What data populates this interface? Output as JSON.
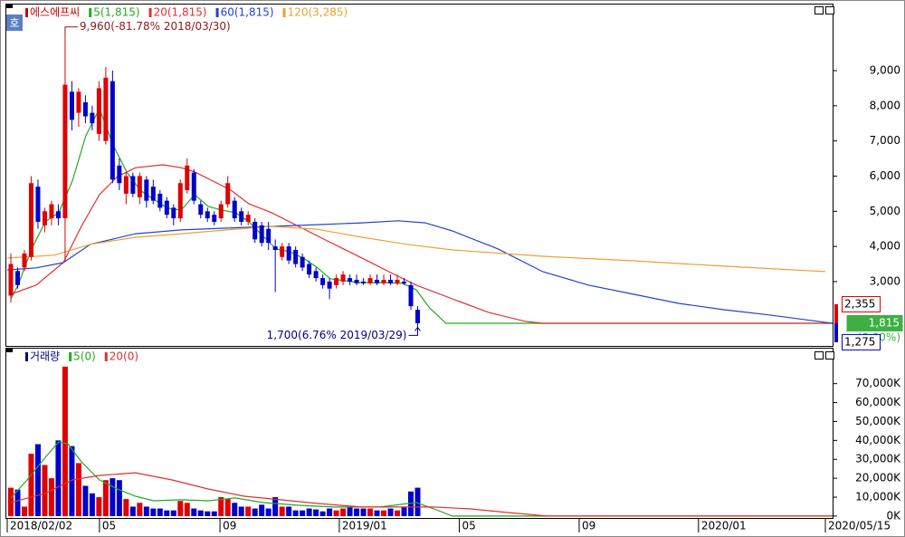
{
  "chart_data": [
    {
      "type": "candlestick",
      "badge": "호",
      "candles": {
        "name": "에스에프씨",
        "color": "#cc0000",
        "color_up": "#e00000",
        "color_down": "#0000cc",
        "x": [
          0.12,
          0.345,
          0.57,
          0.795,
          1.02,
          1.245,
          1.47,
          1.695,
          1.92,
          2.145,
          2.37,
          2.595,
          2.82,
          3.045,
          3.27,
          3.495,
          3.72,
          3.945,
          4.17,
          4.395,
          4.62,
          4.845,
          5.07,
          5.295,
          5.52,
          5.745,
          5.97,
          6.195,
          6.42,
          6.645,
          6.87,
          7.095,
          7.32,
          7.545,
          7.77,
          7.995,
          8.22,
          8.445,
          8.67,
          8.895,
          9.12,
          9.345,
          9.57,
          9.795,
          10.02,
          10.245,
          10.47,
          10.695,
          10.92,
          11.145,
          11.37,
          11.595,
          11.82,
          12.045,
          12.27,
          12.495,
          12.72,
          12.945,
          13.17,
          13.395,
          13.62
        ],
        "open": [
          2600,
          3300,
          3400,
          3700,
          5700,
          4600,
          4800,
          5000,
          4800,
          8400,
          7800,
          8100,
          7800,
          7200,
          7000,
          8700,
          6300,
          5500,
          6000,
          5400,
          5900,
          5700,
          5500,
          5300,
          5100,
          4800,
          5600,
          6100,
          5200,
          5000,
          4900,
          4800,
          5200,
          5300,
          5000,
          4700,
          4700,
          4600,
          4500,
          4000,
          3700,
          4000,
          3900,
          3700,
          3500,
          3300,
          3100,
          3000,
          2900,
          3000,
          3100,
          3050,
          3000,
          2950,
          3050,
          2950,
          3050,
          2950,
          3000,
          2900,
          2200
        ],
        "high": [
          3800,
          3400,
          3900,
          6000,
          5900,
          5100,
          5300,
          5200,
          9960,
          8700,
          8500,
          8300,
          8000,
          8700,
          9100,
          9000,
          6500,
          6100,
          6100,
          6100,
          6000,
          5900,
          5600,
          5400,
          5200,
          5900,
          6500,
          6200,
          5300,
          5100,
          5000,
          5300,
          6000,
          5400,
          5100,
          5000,
          4800,
          4700,
          4700,
          4200,
          4100,
          4100,
          4000,
          3800,
          3600,
          3400,
          3200,
          3100,
          3200,
          3300,
          3200,
          3200,
          3100,
          3200,
          3200,
          3200,
          3200,
          3200,
          3100,
          3000,
          2300
        ],
        "low": [
          2400,
          2800,
          3300,
          3600,
          4500,
          4400,
          4600,
          4600,
          3600,
          7300,
          7400,
          7500,
          7300,
          7000,
          6900,
          5800,
          5600,
          5200,
          5400,
          5200,
          5100,
          5200,
          5000,
          4800,
          4600,
          4700,
          5500,
          5200,
          4800,
          4700,
          4600,
          4700,
          5100,
          4700,
          4600,
          4600,
          4100,
          4000,
          3900,
          2700,
          3600,
          3500,
          3400,
          3300,
          3100,
          3000,
          2800,
          2500,
          2800,
          2900,
          2900,
          2900,
          2900,
          2900,
          2900,
          2900,
          2900,
          2900,
          2900,
          2200,
          1700
        ],
        "close": [
          3500,
          2900,
          3800,
          5800,
          4700,
          5000,
          5200,
          4800,
          8600,
          7600,
          8400,
          7700,
          7500,
          8500,
          8800,
          5900,
          5800,
          6000,
          5500,
          6000,
          5300,
          5300,
          5100,
          4900,
          4800,
          5800,
          6300,
          5300,
          4900,
          4800,
          4700,
          5200,
          5800,
          4800,
          4700,
          4900,
          4200,
          4100,
          4100,
          3900,
          4000,
          3600,
          3500,
          3400,
          3200,
          3100,
          2900,
          2800,
          3100,
          3200,
          3000,
          2950,
          2950,
          3100,
          2950,
          3050,
          2950,
          3050,
          2950,
          2300,
          1815
        ]
      },
      "series": [
        {
          "name": "5(1,815)",
          "color": "#22aa22",
          "x": [
            0.12,
            0.36,
            0.81,
            1.26,
            1.71,
            2.16,
            2.61,
            3.06,
            3.51,
            3.96,
            4.41,
            4.86,
            5.32,
            5.77,
            6.22,
            6.67,
            7.12,
            7.57,
            8.02,
            8.47,
            8.92,
            9.37,
            9.82,
            10.27,
            10.72,
            11.17,
            11.62,
            12.07,
            12.52,
            13.12,
            13.57,
            14.02,
            14.56,
            27.39
          ],
          "values": [
            2510,
            2900,
            3930,
            4700,
            4960,
            5860,
            7150,
            7920,
            6890,
            6120,
            5600,
            5340,
            5090,
            5030,
            5470,
            5140,
            5030,
            4960,
            4700,
            4310,
            3930,
            3850,
            3670,
            3410,
            3080,
            3030,
            2970,
            2970,
            2970,
            2950,
            2770,
            2250,
            1815,
            1815
          ]
        },
        {
          "name": "20(1,815)",
          "color": "#e03030",
          "x": [
            0.12,
            0.96,
            1.86,
            2.46,
            3.06,
            3.66,
            4.26,
            5.17,
            5.77,
            6.22,
            6.82,
            7.42,
            8.02,
            8.77,
            9.67,
            10.57,
            11.77,
            12.67,
            13.57,
            14.77,
            15.98,
            17.18,
            17.78,
            27.39
          ],
          "values": [
            2640,
            2900,
            3540,
            4570,
            5470,
            5990,
            6240,
            6320,
            6240,
            6120,
            5860,
            5600,
            5210,
            4960,
            4570,
            4180,
            3670,
            3280,
            2900,
            2510,
            2120,
            1870,
            1815,
            1815
          ]
        },
        {
          "name": "60(1,815)",
          "color": "#2244cc",
          "x": [
            0,
            0.96,
            1.86,
            2.76,
            4.26,
            5.77,
            7.27,
            8.77,
            10.27,
            11.77,
            12.97,
            13.87,
            14.77,
            16.28,
            17.78,
            19.28,
            20.78,
            22.28,
            23.78,
            25.29,
            27.39
          ],
          "values": [
            3330,
            3390,
            3540,
            4060,
            4360,
            4470,
            4520,
            4570,
            4620,
            4670,
            4730,
            4670,
            4440,
            3930,
            3280,
            2900,
            2640,
            2380,
            2200,
            2050,
            1815
          ]
        },
        {
          "name": "120(3,285)",
          "color": "#f0a030",
          "x": [
            0,
            1.56,
            2.76,
            4.26,
            5.77,
            7.27,
            8.77,
            10.27,
            11.77,
            13.27,
            14.77,
            17.78,
            20.78,
            23.78,
            27.15
          ],
          "values": [
            3670,
            3750,
            4060,
            4260,
            4360,
            4470,
            4570,
            4490,
            4260,
            4060,
            3900,
            3720,
            3590,
            3440,
            3285
          ]
        }
      ],
      "xlim": [
        0,
        27.39
      ],
      "ylim": [
        1170,
        10880
      ],
      "yticks": [
        {
          "value": 3000,
          "label": "3,000"
        },
        {
          "value": 4000,
          "label": "4,000"
        },
        {
          "value": 5000,
          "label": "5,000"
        },
        {
          "value": 6000,
          "label": "6,000"
        },
        {
          "value": 7000,
          "label": "7,000"
        },
        {
          "value": 8000,
          "label": "8,000"
        },
        {
          "value": 9000,
          "label": "9,000"
        }
      ],
      "annotations": [
        {
          "text": "9,960(-81.78% 2018/03/30)",
          "x": 1.92,
          "value": 9960,
          "color": "#8b1a1a"
        },
        {
          "text": "1,700(6.76% 2019/03/29)",
          "x": 13.62,
          "value": 1700,
          "color": "#00008b"
        }
      ],
      "price_markers": [
        {
          "label": "2,355",
          "value": 2355,
          "color": "#e00000",
          "style": "outline"
        },
        {
          "label": "1,815",
          "value": 1815,
          "color": "#3cb043",
          "style": "filled"
        },
        {
          "label": "1,275",
          "value": 1275,
          "color": "#0000cc",
          "style": "outline"
        }
      ],
      "change_label": "(0.00%)"
    },
    {
      "type": "bar",
      "name": "거래량",
      "color": "#00008b",
      "x": [
        0.12,
        0.345,
        0.57,
        0.795,
        1.02,
        1.245,
        1.47,
        1.695,
        1.92,
        2.145,
        2.37,
        2.595,
        2.82,
        3.045,
        3.27,
        3.495,
        3.72,
        3.945,
        4.17,
        4.395,
        4.62,
        4.845,
        5.07,
        5.295,
        5.52,
        5.745,
        5.97,
        6.195,
        6.42,
        6.645,
        6.87,
        7.095,
        7.32,
        7.545,
        7.77,
        7.995,
        8.22,
        8.445,
        8.67,
        8.895,
        9.12,
        9.345,
        9.57,
        9.795,
        10.02,
        10.245,
        10.47,
        10.695,
        10.92,
        11.145,
        11.37,
        11.595,
        11.82,
        12.045,
        12.27,
        12.495,
        12.72,
        12.945,
        13.17,
        13.395,
        13.62
      ],
      "values": [
        15000,
        14000,
        5000,
        33000,
        38000,
        27000,
        20000,
        40000,
        79000,
        37000,
        28000,
        16000,
        12000,
        10000,
        19000,
        20000,
        19000,
        9000,
        5000,
        7000,
        5000,
        4000,
        4000,
        3000,
        3000,
        8000,
        7000,
        4000,
        3000,
        2500,
        2500,
        10000,
        9000,
        7000,
        5000,
        5000,
        4000,
        6000,
        4000,
        10000,
        5000,
        5000,
        3000,
        3000,
        4000,
        3500,
        2500,
        4000,
        3000,
        4000,
        5000,
        4000,
        4000,
        4000,
        3000,
        3000,
        4000,
        3000,
        5000,
        13000,
        15000
      ],
      "series": [
        {
          "name": "5(0)",
          "color": "#22aa22",
          "x": [
            0.12,
            0.66,
            1.26,
            1.71,
            2.01,
            2.46,
            3.06,
            3.66,
            4.26,
            4.86,
            5.77,
            6.67,
            7.57,
            8.47,
            9.67,
            10.87,
            12.37,
            13.57,
            14.17,
            14.77,
            27.39
          ],
          "values": [
            9600,
            19100,
            31000,
            39200,
            38200,
            28700,
            19100,
            14300,
            10500,
            8100,
            8600,
            8100,
            9600,
            7200,
            5700,
            4800,
            4800,
            7200,
            3800,
            0,
            0
          ]
        },
        {
          "name": "20(0)",
          "color": "#e03030",
          "x": [
            0.12,
            1.26,
            2.16,
            3.06,
            4.26,
            5.47,
            6.67,
            7.87,
            9.07,
            10.27,
            11.77,
            13.27,
            14.17,
            15.38,
            16.58,
            17.93,
            27.39
          ],
          "values": [
            7200,
            12000,
            19100,
            21500,
            22900,
            19100,
            14300,
            10500,
            8600,
            6700,
            4800,
            4800,
            4800,
            3800,
            1900,
            0,
            0
          ]
        }
      ],
      "xlim": [
        0,
        27.39
      ],
      "ylim": [
        -1000,
        88500
      ],
      "yticks": [
        {
          "value": 0,
          "label": "0K"
        },
        {
          "value": 10000,
          "label": "10,000K"
        },
        {
          "value": 20000,
          "label": "20,000K"
        },
        {
          "value": 30000,
          "label": "30,000K"
        },
        {
          "value": 40000,
          "label": "40,000K"
        },
        {
          "value": 50000,
          "label": "50,000K"
        },
        {
          "value": 60000,
          "label": "60,000K"
        },
        {
          "value": 70000,
          "label": "70,000K"
        }
      ],
      "xticks": [
        {
          "value": 0,
          "label": "2018/02/02"
        },
        {
          "value": 3.06,
          "label": "05"
        },
        {
          "value": 7.06,
          "label": "09"
        },
        {
          "value": 11.02,
          "label": "2019/01"
        },
        {
          "value": 15.0,
          "label": "05"
        },
        {
          "value": 18.98,
          "label": "09"
        },
        {
          "value": 22.94,
          "label": "2020/01"
        },
        {
          "value": 27.15,
          "label": "2020/05/15"
        }
      ]
    }
  ]
}
